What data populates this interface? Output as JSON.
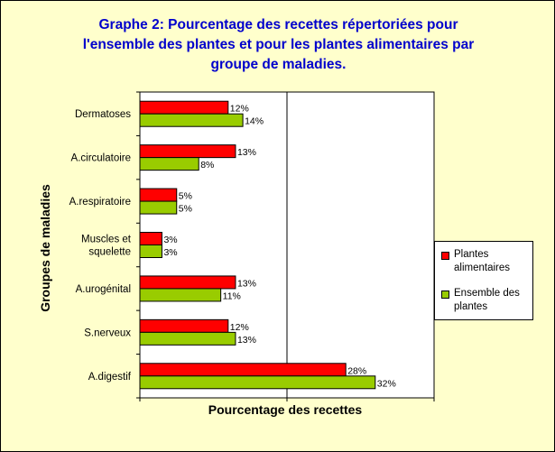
{
  "chart_data": {
    "type": "bar",
    "orientation": "horizontal",
    "title": "Graphe 2: Pourcentage des recettes répertoriées pour l'ensemble des plantes et pour les plantes alimentaires par groupe de maladies.",
    "title_lines": [
      "Graphe 2: Pourcentage des recettes répertoriées pour",
      "l'ensemble des plantes et pour les plantes alimentaires par",
      "groupe de maladies."
    ],
    "xlabel": "Pourcentage des recettes",
    "ylabel": "Groupes de maladies",
    "categories": [
      [
        "Dermatoses"
      ],
      [
        "A.circulatoire"
      ],
      [
        "A.respiratoire"
      ],
      [
        "Muscles et",
        "squelette"
      ],
      [
        "A.urogénital"
      ],
      [
        "S.nerveux"
      ],
      [
        "A.digestif"
      ]
    ],
    "series": [
      {
        "name": "Plantes alimentaires",
        "color": "#FF0000",
        "values": [
          12,
          13,
          5,
          3,
          13,
          12,
          28
        ],
        "labels": [
          "12%",
          "13%",
          "5%",
          "3%",
          "13%",
          "12%",
          "28%"
        ]
      },
      {
        "name": "Ensemble des plantes",
        "color": "#99CC00",
        "values": [
          14,
          8,
          5,
          3,
          11,
          13,
          32
        ],
        "labels": [
          "14%",
          "8%",
          "5%",
          "3%",
          "11%",
          "13%",
          "32%"
        ]
      }
    ],
    "xlim": [
      0,
      40
    ],
    "grid": true,
    "legend_position": "right"
  },
  "legend": [
    {
      "lines": [
        "Plantes",
        "alimentaires"
      ],
      "color": "#FF0000"
    },
    {
      "lines": [
        "Ensemble des",
        "plantes"
      ],
      "color": "#99CC00"
    }
  ]
}
